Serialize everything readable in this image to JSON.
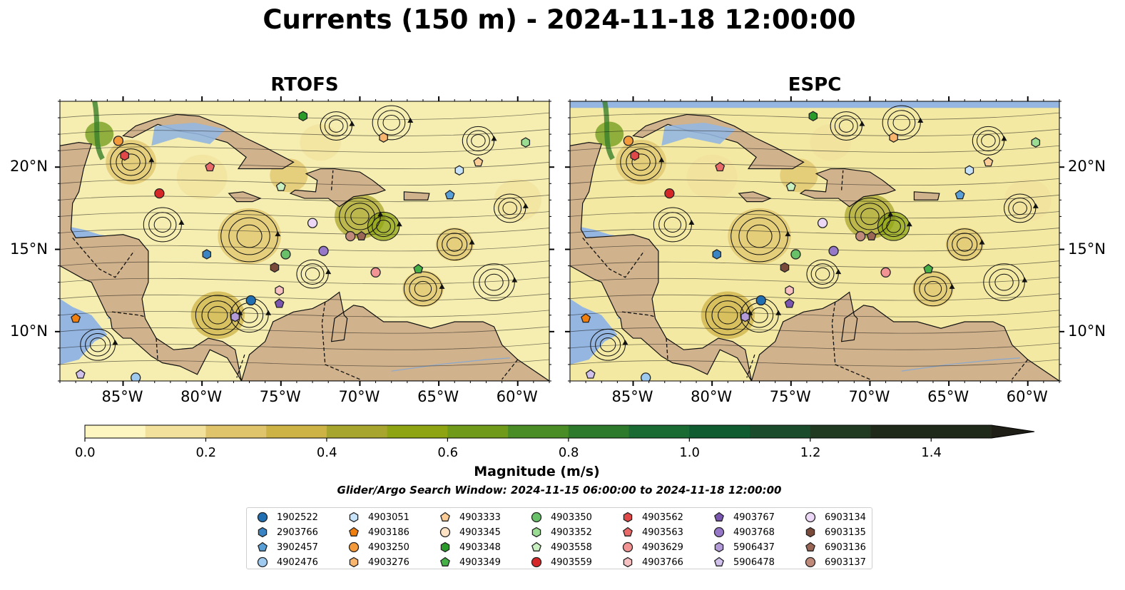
{
  "title": "Currents (150 m) - 2024-11-18 12:00:00",
  "panels": [
    {
      "title": "RTOFS",
      "ocean_fill": "#f6eeb0"
    },
    {
      "title": "ESPC",
      "ocean_fill": "#f3e9a3"
    }
  ],
  "map": {
    "lon_range": [
      -89,
      -58
    ],
    "lat_range": [
      7,
      24
    ],
    "x_ticks": [
      "85°W",
      "80°W",
      "75°W",
      "70°W",
      "65°W",
      "60°W"
    ],
    "y_ticks": [
      "20°N",
      "15°N",
      "10°N"
    ],
    "land_color": "#d0b28c",
    "water_color": "#94b6e0"
  },
  "colorbar": {
    "label": "Magnitude (m/s)",
    "range": [
      0.0,
      1.5
    ],
    "extend": "max",
    "ticks": [
      "0.0",
      "0.2",
      "0.4",
      "0.6",
      "0.8",
      "1.0",
      "1.2",
      "1.4"
    ],
    "colors": [
      "#fdf6c0",
      "#f2e19d",
      "#dfc46c",
      "#cdb246",
      "#a8a52e",
      "#8ea412",
      "#6f9a1a",
      "#4a8d27",
      "#2d7a2c",
      "#196a33",
      "#0e5c30",
      "#1a4c2c",
      "#203a22",
      "#202a1a"
    ]
  },
  "search_window": "Glider/Argo Search Window: 2024-11-15 06:00:00 to 2024-11-18 12:00:00",
  "legend": [
    {
      "id": "1902522",
      "shape": "circle",
      "color": "#1f6fb2"
    },
    {
      "id": "2903766",
      "shape": "hexagon",
      "color": "#3a84c4"
    },
    {
      "id": "3902457",
      "shape": "pentagon",
      "color": "#5aa0d8"
    },
    {
      "id": "4902476",
      "shape": "circle",
      "color": "#9fcaf0"
    },
    {
      "id": "4903051",
      "shape": "hexagon",
      "color": "#c8e4fa"
    },
    {
      "id": "4903186",
      "shape": "pentagon",
      "color": "#f07f0e"
    },
    {
      "id": "4903250",
      "shape": "circle",
      "color": "#f59a3a"
    },
    {
      "id": "4903276",
      "shape": "hexagon",
      "color": "#f9b46e"
    },
    {
      "id": "4903333",
      "shape": "pentagon",
      "color": "#fbcc96"
    },
    {
      "id": "4903345",
      "shape": "circle",
      "color": "#fde2c4"
    },
    {
      "id": "4903348",
      "shape": "hexagon",
      "color": "#2a9a2a"
    },
    {
      "id": "4903349",
      "shape": "pentagon",
      "color": "#45b045"
    },
    {
      "id": "4903350",
      "shape": "circle",
      "color": "#68c168"
    },
    {
      "id": "4903352",
      "shape": "hexagon",
      "color": "#99dc92"
    },
    {
      "id": "4903558",
      "shape": "pentagon",
      "color": "#c8f0c0"
    },
    {
      "id": "4903559",
      "shape": "circle",
      "color": "#d62728"
    },
    {
      "id": "4903562",
      "shape": "hexagon",
      "color": "#e14848"
    },
    {
      "id": "4903563",
      "shape": "pentagon",
      "color": "#ea6a6a"
    },
    {
      "id": "4903629",
      "shape": "circle",
      "color": "#f29494"
    },
    {
      "id": "4903766",
      "shape": "hexagon",
      "color": "#f8c0c0"
    },
    {
      "id": "4903767",
      "shape": "pentagon",
      "color": "#7a56b0"
    },
    {
      "id": "4903768",
      "shape": "circle",
      "color": "#9778c8"
    },
    {
      "id": "5906437",
      "shape": "hexagon",
      "color": "#b39ad8"
    },
    {
      "id": "5906478",
      "shape": "pentagon",
      "color": "#d0c0ec"
    },
    {
      "id": "6903134",
      "shape": "circle",
      "color": "#ecd8f6"
    },
    {
      "id": "6903135",
      "shape": "hexagon",
      "color": "#7a4a3a"
    },
    {
      "id": "6903136",
      "shape": "pentagon",
      "color": "#9a6656"
    },
    {
      "id": "6903137",
      "shape": "circle",
      "color": "#c08a7a"
    }
  ],
  "floats": [
    {
      "id": "4903250",
      "lon": -85.3,
      "lat": 21.6
    },
    {
      "id": "4903562",
      "lon": -84.9,
      "lat": 20.7
    },
    {
      "id": "4903563",
      "lon": -79.5,
      "lat": 20.0
    },
    {
      "id": "4903559",
      "lon": -82.7,
      "lat": 18.4
    },
    {
      "id": "4903558",
      "lon": -75.0,
      "lat": 18.8
    },
    {
      "id": "4903348",
      "lon": -73.6,
      "lat": 23.1
    },
    {
      "id": "4903276",
      "lon": -68.5,
      "lat": 21.8
    },
    {
      "id": "4903333",
      "lon": -62.5,
      "lat": 20.3
    },
    {
      "id": "4903352",
      "lon": -59.5,
      "lat": 21.5
    },
    {
      "id": "4903051",
      "lon": -63.7,
      "lat": 19.8
    },
    {
      "id": "3902457",
      "lon": -64.3,
      "lat": 18.3
    },
    {
      "id": "6903134",
      "lon": -73.0,
      "lat": 16.6
    },
    {
      "id": "2903766",
      "lon": -79.7,
      "lat": 14.7
    },
    {
      "id": "4903350",
      "lon": -74.7,
      "lat": 14.7
    },
    {
      "id": "4903768",
      "lon": -72.3,
      "lat": 14.9
    },
    {
      "id": "6903137",
      "lon": -70.6,
      "lat": 15.8
    },
    {
      "id": "6903136",
      "lon": -69.9,
      "lat": 15.8
    },
    {
      "id": "6903135",
      "lon": -75.4,
      "lat": 13.9
    },
    {
      "id": "4903629",
      "lon": -69.0,
      "lat": 13.6
    },
    {
      "id": "4903349",
      "lon": -66.3,
      "lat": 13.8
    },
    {
      "id": "4903766",
      "lon": -75.1,
      "lat": 12.5
    },
    {
      "id": "1902522",
      "lon": -76.9,
      "lat": 11.9
    },
    {
      "id": "4903767",
      "lon": -75.1,
      "lat": 11.7
    },
    {
      "id": "5906437",
      "lon": -77.9,
      "lat": 10.9
    },
    {
      "id": "4903186",
      "lon": -88.0,
      "lat": 10.8
    },
    {
      "id": "5906478",
      "lon": -87.7,
      "lat": 7.4
    },
    {
      "id": "4902476",
      "lon": -84.2,
      "lat": 7.2
    }
  ]
}
